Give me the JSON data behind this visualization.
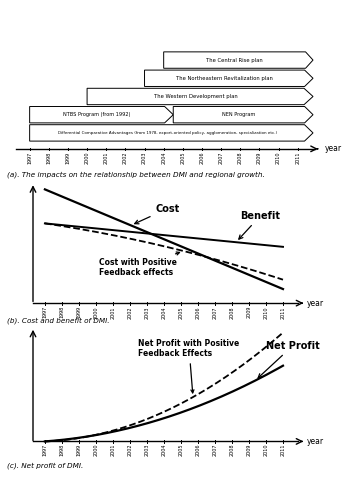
{
  "caption_a": "(a). The impacts on the relationship between DMI and regional growth.",
  "caption_b": "(b). Cost and benefit of DMI.",
  "caption_c": "(c). Net profit of DMI.",
  "years": [
    1997,
    1998,
    1999,
    2000,
    2001,
    2002,
    2003,
    2004,
    2005,
    2006,
    2007,
    2008,
    2009,
    2010,
    2011
  ],
  "background": "#ffffff"
}
